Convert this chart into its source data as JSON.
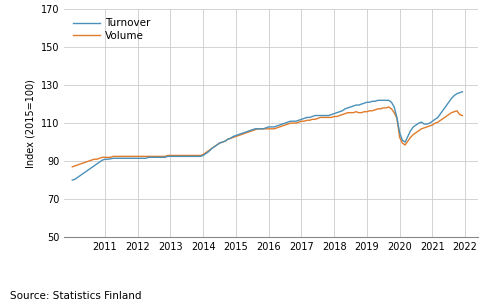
{
  "ylabel": "Index (2015=100)",
  "source": "Source: Statistics Finland",
  "turnover_color": "#4a90b8",
  "volume_color": "#e07b2a",
  "background_color": "#ffffff",
  "grid_color": "#cccccc",
  "ylim": [
    50,
    170
  ],
  "yticks": [
    50,
    70,
    90,
    110,
    130,
    150,
    170
  ],
  "xlim_start": 2009.75,
  "xlim_end": 2022.4,
  "xtick_years": [
    2011,
    2012,
    2013,
    2014,
    2015,
    2016,
    2017,
    2018,
    2019,
    2020,
    2021,
    2022
  ],
  "turnover": [
    80.0,
    80.5,
    81.5,
    82.5,
    83.5,
    84.5,
    85.5,
    86.5,
    87.5,
    88.5,
    89.5,
    90.5,
    91.0,
    91.0,
    91.2,
    91.5,
    91.5,
    91.5,
    91.5,
    91.5,
    91.5,
    91.5,
    91.5,
    91.5,
    91.5,
    91.5,
    91.5,
    91.5,
    92.0,
    92.0,
    92.0,
    92.0,
    92.0,
    92.0,
    92.0,
    92.5,
    92.5,
    92.5,
    92.5,
    92.5,
    92.5,
    92.5,
    92.5,
    92.5,
    92.5,
    92.5,
    92.5,
    92.5,
    93.0,
    94.0,
    95.0,
    96.5,
    97.5,
    98.5,
    99.5,
    100.0,
    100.5,
    101.5,
    102.0,
    103.0,
    103.5,
    104.0,
    104.5,
    105.0,
    105.5,
    106.0,
    106.5,
    107.0,
    107.0,
    107.0,
    107.0,
    107.5,
    108.0,
    108.0,
    108.0,
    108.5,
    109.0,
    109.5,
    110.0,
    110.5,
    111.0,
    111.0,
    111.0,
    111.5,
    112.0,
    112.5,
    113.0,
    113.0,
    113.5,
    114.0,
    114.0,
    114.0,
    114.0,
    114.0,
    114.0,
    114.5,
    115.0,
    115.5,
    116.0,
    116.5,
    117.5,
    118.0,
    118.5,
    119.0,
    119.5,
    119.5,
    120.0,
    120.5,
    121.0,
    121.0,
    121.5,
    121.5,
    122.0,
    122.0,
    122.0,
    122.0,
    122.0,
    121.0,
    118.5,
    113.0,
    105.0,
    101.0,
    100.0,
    103.0,
    106.0,
    108.0,
    109.0,
    110.0,
    110.5,
    109.5,
    109.5,
    110.0,
    111.0,
    112.0,
    113.0,
    115.0,
    117.0,
    119.0,
    121.0,
    123.0,
    124.5,
    125.5,
    126.0,
    126.5
  ],
  "volume": [
    87.0,
    87.5,
    88.0,
    88.5,
    89.0,
    89.5,
    90.0,
    90.5,
    91.0,
    91.0,
    91.5,
    92.0,
    92.0,
    92.0,
    92.0,
    92.5,
    92.5,
    92.5,
    92.5,
    92.5,
    92.5,
    92.5,
    92.5,
    92.5,
    92.5,
    92.5,
    92.5,
    92.5,
    92.5,
    92.5,
    92.5,
    92.5,
    92.5,
    92.5,
    92.5,
    93.0,
    93.0,
    93.0,
    93.0,
    93.0,
    93.0,
    93.0,
    93.0,
    93.0,
    93.0,
    93.0,
    93.0,
    93.0,
    93.5,
    94.5,
    95.5,
    96.5,
    97.5,
    98.5,
    99.5,
    100.0,
    100.5,
    101.5,
    102.0,
    102.5,
    103.0,
    103.5,
    104.0,
    104.5,
    105.0,
    105.5,
    106.0,
    106.5,
    107.0,
    107.0,
    107.0,
    107.0,
    107.0,
    107.0,
    107.0,
    107.5,
    108.0,
    108.5,
    109.0,
    109.5,
    110.0,
    110.0,
    110.0,
    110.5,
    111.0,
    111.0,
    111.5,
    111.5,
    112.0,
    112.0,
    112.5,
    113.0,
    113.0,
    113.0,
    113.0,
    113.0,
    113.5,
    113.5,
    114.0,
    114.5,
    115.0,
    115.5,
    115.5,
    115.5,
    116.0,
    115.5,
    115.5,
    116.0,
    116.0,
    116.5,
    116.5,
    117.0,
    117.5,
    117.5,
    118.0,
    118.0,
    118.5,
    117.5,
    115.5,
    112.5,
    102.5,
    99.5,
    98.5,
    100.5,
    102.5,
    104.0,
    105.0,
    106.0,
    107.0,
    107.5,
    108.0,
    108.5,
    109.0,
    110.0,
    110.5,
    111.5,
    112.5,
    113.5,
    114.5,
    115.5,
    116.0,
    116.5,
    114.5,
    114.0
  ],
  "n_months": 144,
  "start_year": 2010,
  "start_month": 1
}
